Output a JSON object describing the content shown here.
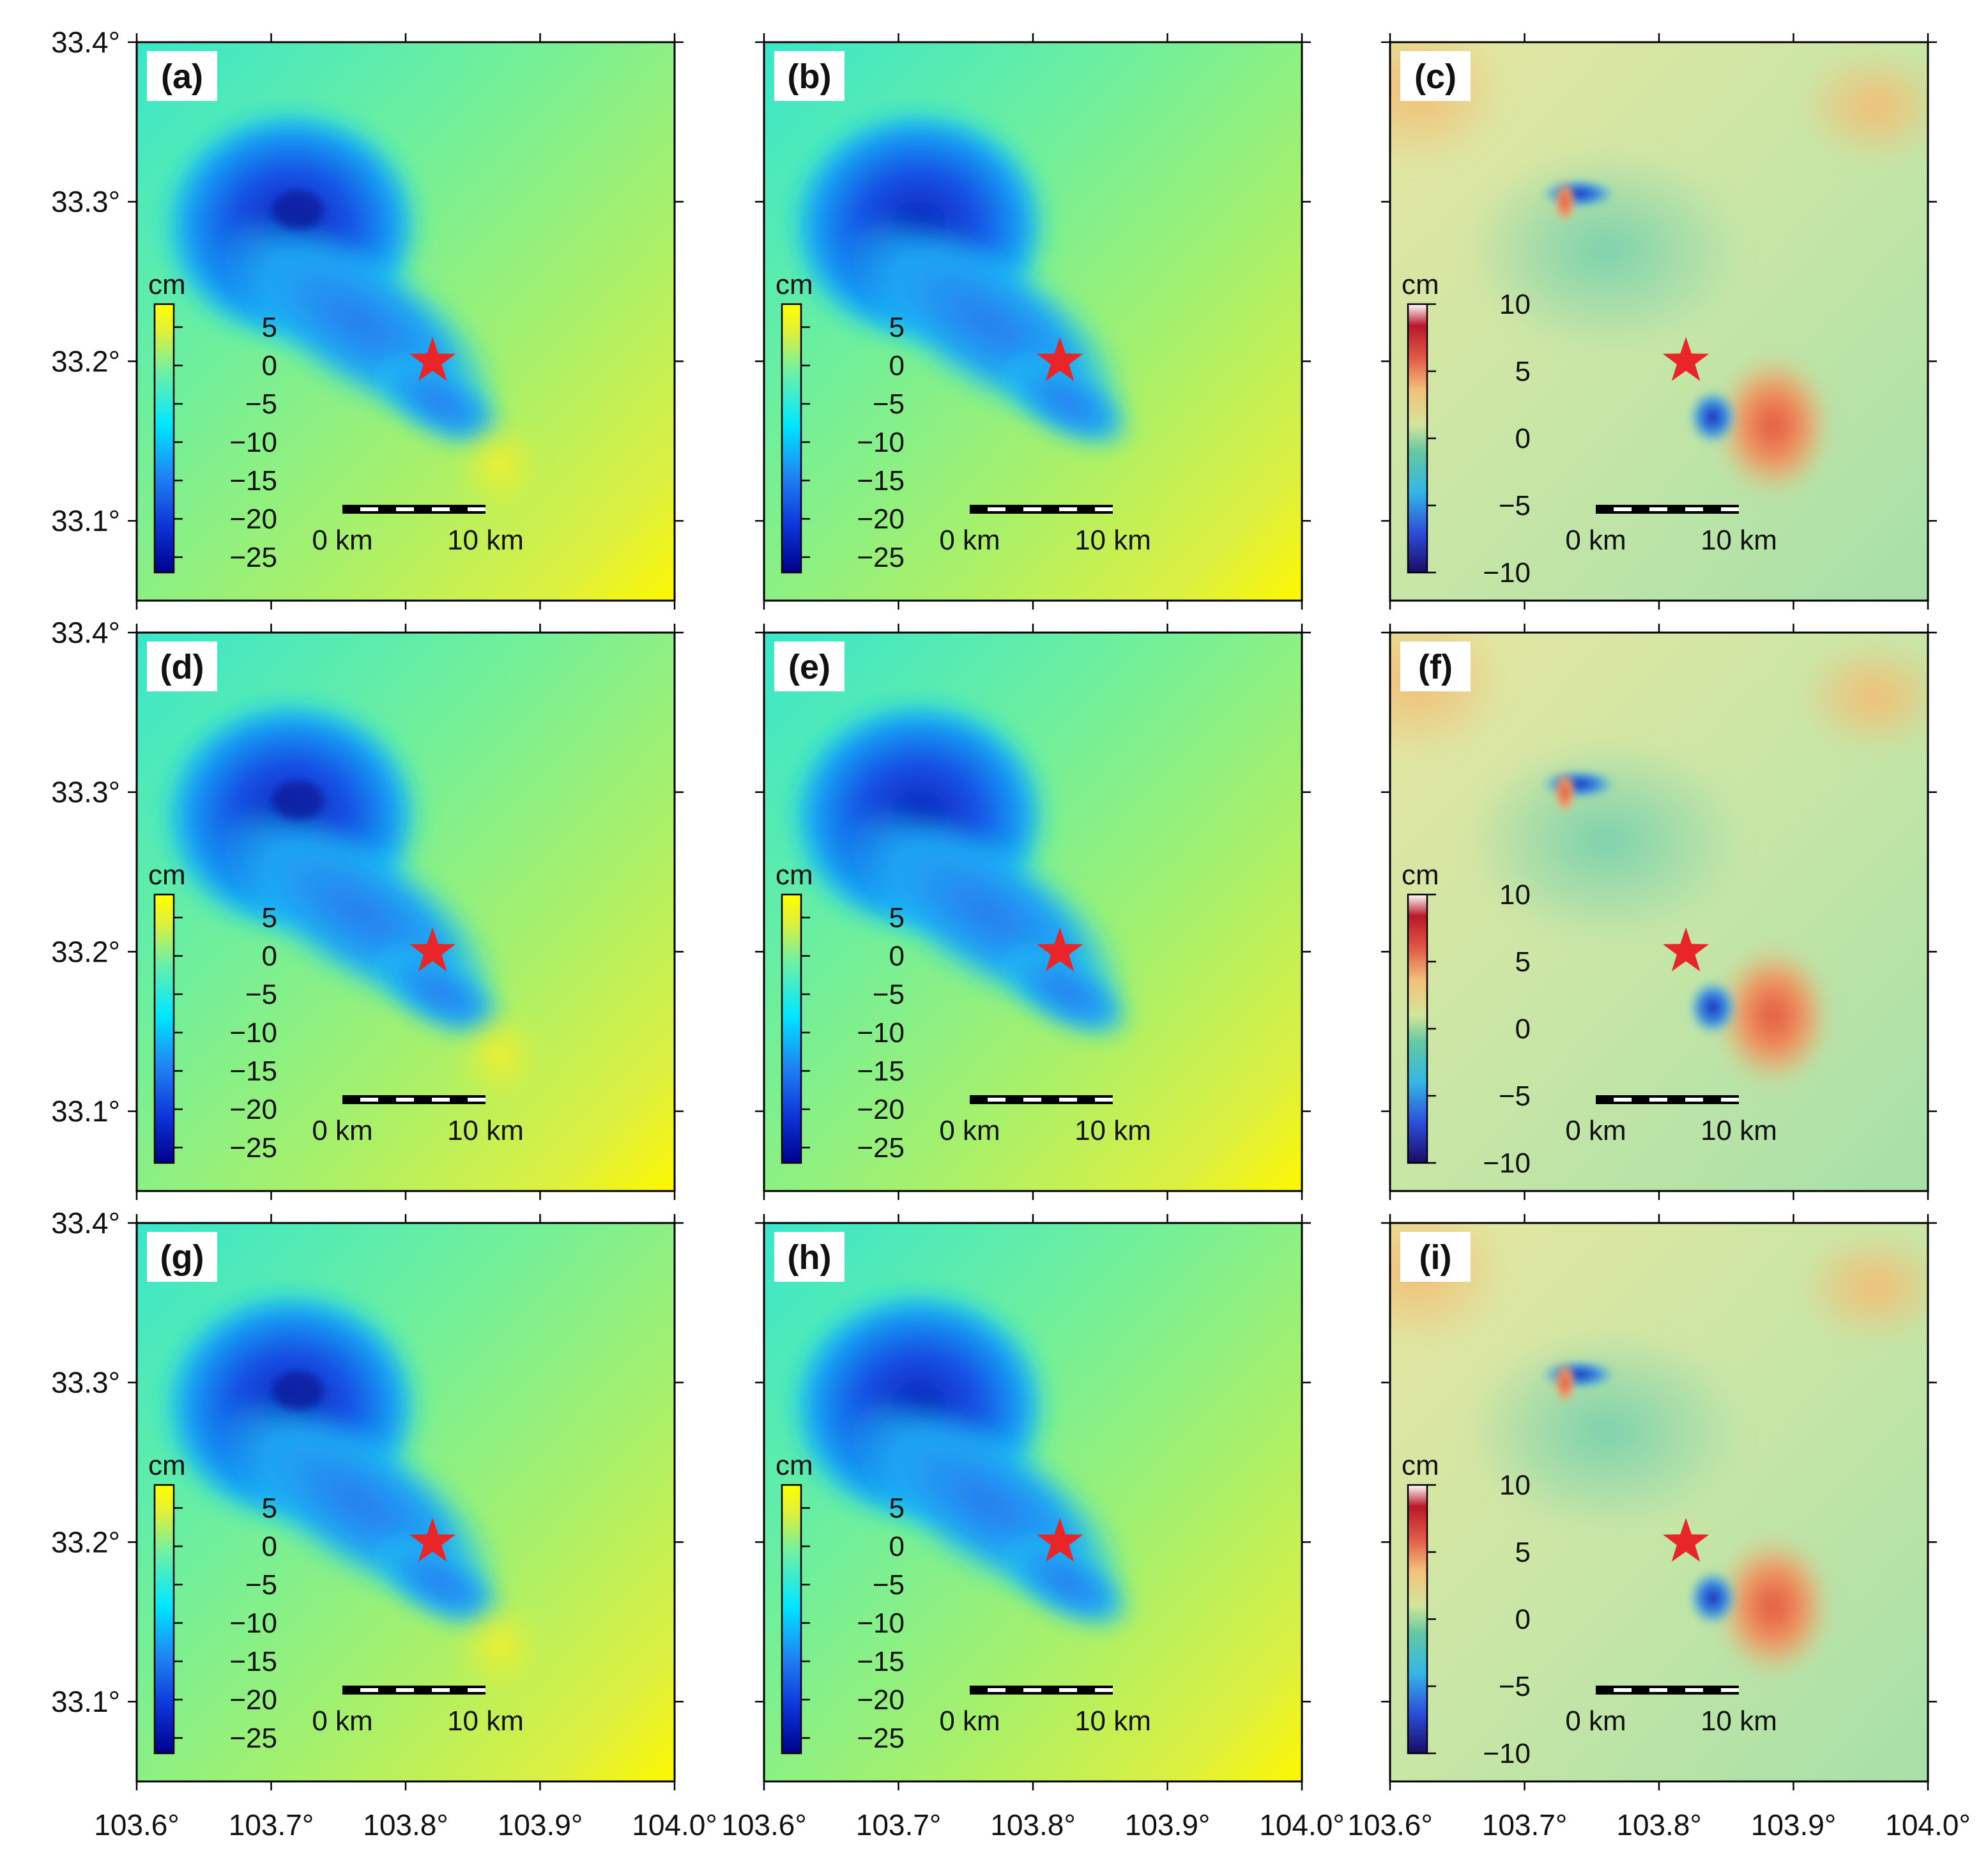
{
  "chart_data": {
    "type": "heatmap",
    "title": "",
    "description_units": "cm",
    "layout": {
      "rows": 3,
      "cols": 3
    },
    "x_axis": {
      "range": [
        103.6,
        104.0
      ],
      "ticks": [
        103.6,
        103.7,
        103.8,
        103.9,
        104.0
      ],
      "tick_labels": [
        "103.6°",
        "103.7°",
        "103.8°",
        "103.9°",
        "104.0°"
      ]
    },
    "y_axis": {
      "range": [
        33.05,
        33.4
      ],
      "ticks": [
        33.1,
        33.2,
        33.3,
        33.4
      ],
      "tick_labels": [
        "33.1°",
        "33.2°",
        "33.3°",
        "33.4°"
      ]
    },
    "epicenter": {
      "lon": 103.82,
      "lat": 33.2,
      "marker": "star",
      "color": "#e8262a"
    },
    "colorbars": {
      "displacement": {
        "label": "cm",
        "range": [
          -27,
          8
        ],
        "ticks": [
          5,
          0,
          -5,
          -10,
          -15,
          -20,
          -25
        ],
        "tick_labels": [
          "5",
          "0",
          "−5",
          "−10",
          "−15",
          "−20",
          "−25"
        ],
        "colors": [
          "#00008b",
          "#0c33d8",
          "#1f80f4",
          "#00e7ff",
          "#6ff0a4",
          "#e1f038",
          "#ffff00"
        ]
      },
      "residual": {
        "label": "cm",
        "range": [
          -10,
          10
        ],
        "ticks": [
          10,
          5,
          0,
          -5,
          -10
        ],
        "tick_labels": [
          "10",
          "5",
          "0",
          "−5",
          "−10"
        ],
        "colors": [
          "#1a0b66",
          "#2b4fd8",
          "#35b6e6",
          "#64c8a0",
          "#d2e69a",
          "#f4c07a",
          "#e05a45",
          "#b8182a",
          "#ffffff"
        ]
      }
    },
    "scale_bar": {
      "labels": [
        "0 km",
        "10 km"
      ],
      "length_km": 10
    },
    "panels": [
      {
        "label": "(a)",
        "kind": "observed",
        "colorbar": "displacement"
      },
      {
        "label": "(b)",
        "kind": "model",
        "colorbar": "displacement"
      },
      {
        "label": "(c)",
        "kind": "residual",
        "colorbar": "residual"
      },
      {
        "label": "(d)",
        "kind": "observed",
        "colorbar": "displacement"
      },
      {
        "label": "(e)",
        "kind": "model",
        "colorbar": "displacement"
      },
      {
        "label": "(f)",
        "kind": "residual",
        "colorbar": "residual"
      },
      {
        "label": "(g)",
        "kind": "observed",
        "colorbar": "displacement"
      },
      {
        "label": "(h)",
        "kind": "model",
        "colorbar": "displacement"
      },
      {
        "label": "(i)",
        "kind": "residual",
        "colorbar": "residual"
      }
    ]
  }
}
